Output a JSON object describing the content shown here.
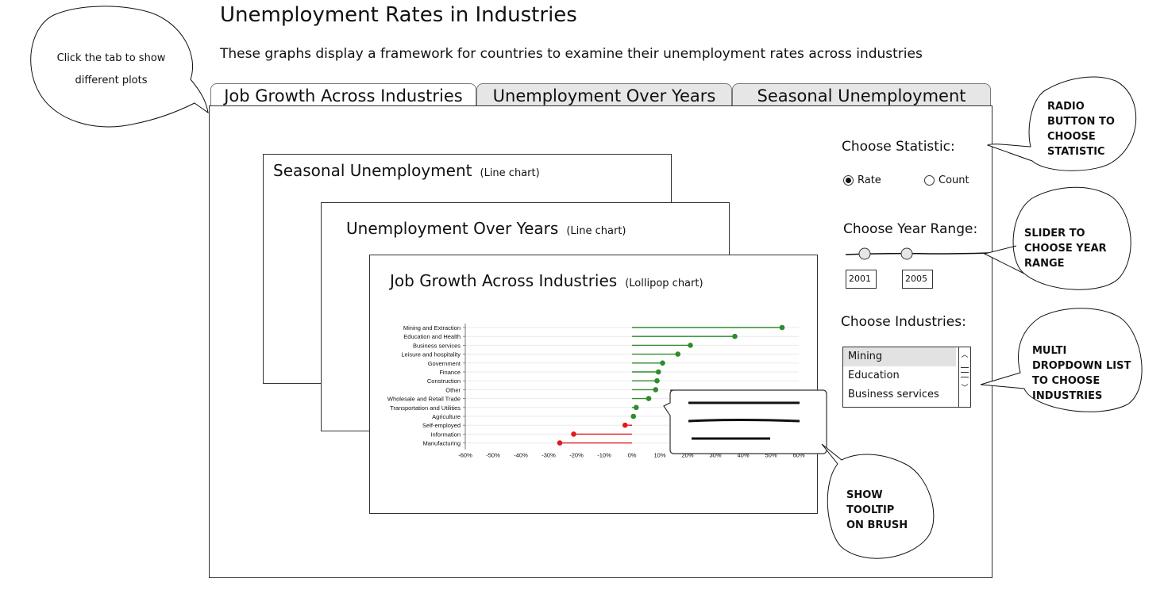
{
  "header": {
    "title": "Unemployment Rates in Industries",
    "subtitle": "These graphs display a framework for countries to examine their unemployment rates across industries"
  },
  "tabs": [
    {
      "label": "Job Growth Across Industries",
      "active": true
    },
    {
      "label": "Unemployment Over Years",
      "active": false
    },
    {
      "label": "Seasonal Unemployment",
      "active": false
    }
  ],
  "cards": {
    "seasonal": {
      "title": "Seasonal Unemployment",
      "type": "(Line chart)"
    },
    "years": {
      "title": "Unemployment Over Years",
      "type": "(Line chart)"
    },
    "lollipop": {
      "title": "Job Growth Across Industries",
      "type": "(Lollipop chart)"
    }
  },
  "controls": {
    "statistic_label": "Choose Statistic:",
    "statistic_options": [
      {
        "label": "Rate",
        "checked": true
      },
      {
        "label": "Count",
        "checked": false
      }
    ],
    "year_range_label": "Choose Year Range:",
    "year_start": "2001",
    "year_end": "2005",
    "industries_label": "Choose Industries:",
    "industry_options": [
      "Mining",
      "Education",
      "Business services"
    ],
    "industry_selected": "Mining"
  },
  "annotations": {
    "tabs_help": "Click the tab to\nshow different plots",
    "radio_help": "RADIO\nBUTTON TO\nCHOOSE\nSTATISTIC",
    "slider_help": "SLIDER TO\nCHOOSE YEAR\nRANGE",
    "list_help": "MULTI\nDROPDOWN LIST\nTO CHOOSE\nINDUSTRIES",
    "tooltip_help": "SHOW\nTOOLTIP\nON BRUSH"
  },
  "colors": {
    "positive": "#2e8b2e",
    "negative": "#e01b1b"
  },
  "chart_data": {
    "type": "lollipop",
    "categories": [
      "Mining and Extraction",
      "Education and Health",
      "Business services",
      "Leisure and hospitality",
      "Government",
      "Finance",
      "Construction",
      "Other",
      "Wholesale and Retail Trade",
      "Transportation and Utilities",
      "Agriculture",
      "Self-employed",
      "Information",
      "Manufacturing"
    ],
    "values": [
      54,
      37,
      21,
      16.5,
      11,
      9.5,
      9,
      8.5,
      6,
      1.5,
      0.5,
      -2.5,
      -21,
      -26
    ],
    "x_ticks": [
      "-60%",
      "-50%",
      "-40%",
      "-30%",
      "-20%",
      "-10%",
      "0%",
      "10%",
      "20%",
      "30%",
      "40%",
      "50%",
      "60%"
    ],
    "xlim": [
      -60,
      60
    ]
  }
}
